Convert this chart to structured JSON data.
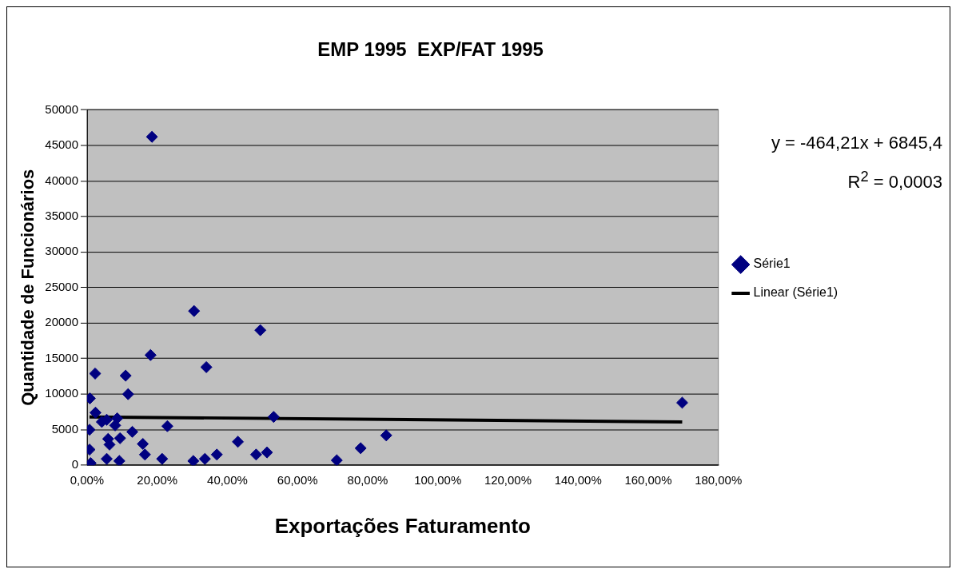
{
  "chart_data": {
    "type": "scatter",
    "title": "EMP 1995  EXP/FAT 1995",
    "xlabel": "Exportações Faturamento",
    "ylabel": "Quantidade de Funcionários",
    "annotations": [
      "y = -464,21x + 6845,4",
      "R$^{2}$ = 0,0003"
    ],
    "xlim": [
      0,
      1.8
    ],
    "xticks": [
      {
        "value": 0,
        "label": "0,00%"
      },
      {
        "value": 0.2,
        "label": "20,00%"
      },
      {
        "value": 0.4,
        "label": "40,00%"
      },
      {
        "value": 0.6,
        "label": "60,00%"
      },
      {
        "value": 0.8,
        "label": "80,00%"
      },
      {
        "value": 1,
        "label": "100,00%"
      },
      {
        "value": 1.2,
        "label": "120,00%"
      },
      {
        "value": 1.4,
        "label": "140,00%"
      },
      {
        "value": 1.6,
        "label": "160,00%"
      },
      {
        "value": 1.8,
        "label": "180,00%"
      }
    ],
    "ylim": [
      0,
      50000
    ],
    "yticks": [
      0,
      5000,
      10000,
      15000,
      20000,
      25000,
      30000,
      35000,
      40000,
      45000,
      50000
    ],
    "grid": "y",
    "legend": "right",
    "marker": "diamond",
    "series": [
      {
        "name": "Série1",
        "color": "#000080",
        "x": [
          0.007,
          0.007,
          0.01,
          0.008,
          0.023,
          0.024,
          0.042,
          0.056,
          0.06,
          0.064,
          0.056,
          0.086,
          0.08,
          0.094,
          0.092,
          0.11,
          0.117,
          0.129,
          0.159,
          0.165,
          0.185,
          0.181,
          0.214,
          0.229,
          0.305,
          0.303,
          0.336,
          0.34,
          0.37,
          0.43,
          0.482,
          0.494,
          0.513,
          0.532,
          0.712,
          0.78,
          0.853,
          1.697
        ],
        "values": [
          5000,
          2200,
          300,
          9400,
          12900,
          7400,
          6100,
          6400,
          3700,
          2900,
          900,
          6600,
          5600,
          3800,
          600,
          12600,
          10000,
          4700,
          3000,
          1500,
          46200,
          15500,
          900,
          5500,
          21700,
          600,
          900,
          13800,
          1500,
          3300,
          1500,
          19000,
          1800,
          6800,
          700,
          2400,
          4200,
          8800
        ]
      },
      {
        "name": "Linear (Série1)",
        "type": "line",
        "color": "#000000",
        "marker": "none",
        "x": [
          0.007,
          1.697
        ],
        "values": [
          6800,
          6100
        ]
      }
    ]
  }
}
